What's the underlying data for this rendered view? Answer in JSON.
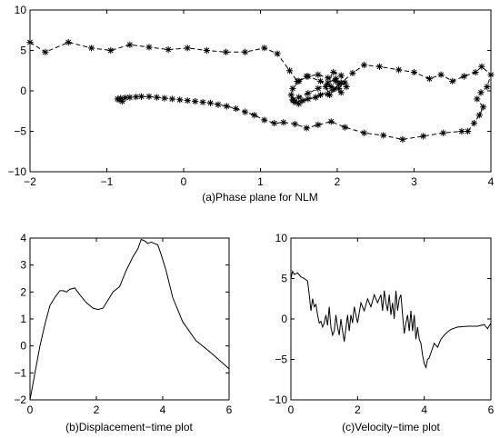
{
  "chart_data": [
    {
      "type": "line",
      "caption": "(a)Phase plane for NLM",
      "marker": "asterisk",
      "line_style": "dashed",
      "xlim": [
        -2,
        4
      ],
      "ylim": [
        -10,
        10
      ],
      "xticks": [
        -2,
        -1,
        0,
        1,
        2,
        3,
        4
      ],
      "yticks": [
        -10,
        -5,
        0,
        5,
        10
      ],
      "grid": false,
      "series": [
        {
          "x": [
            -2.0,
            -1.8,
            -1.5,
            -1.2,
            -0.95,
            -0.7,
            -0.45,
            -0.2,
            0.05,
            0.3,
            0.55,
            0.8,
            1.05,
            1.22,
            1.38,
            1.48,
            1.6,
            1.75,
            1.88,
            1.98,
            2.05,
            2.12,
            2.05,
            1.92,
            1.78,
            1.62,
            1.5,
            1.42,
            1.4,
            1.43,
            1.5,
            1.62,
            1.78,
            1.95,
            2.02,
            1.98,
            1.88,
            1.75,
            1.62,
            1.5,
            1.42,
            1.45,
            1.55,
            1.72,
            1.88,
            2.02,
            2.1,
            2.05,
            1.95,
            1.85,
            1.9,
            2.05,
            2.2,
            2.35,
            2.55,
            2.8,
            3.0,
            3.2,
            3.35,
            3.5,
            3.65,
            3.8,
            3.88,
            4.0,
            3.95,
            3.87,
            3.82,
            3.9,
            3.85,
            3.78,
            3.7,
            3.62,
            3.38,
            3.12,
            2.85,
            2.6,
            2.35,
            2.1,
            1.92,
            1.75,
            1.6,
            1.45,
            1.3,
            1.18,
            1.05,
            0.92,
            0.8,
            0.68,
            0.56,
            0.45,
            0.35,
            0.25,
            0.15,
            0.05,
            -0.05,
            -0.15,
            -0.25,
            -0.35,
            -0.45,
            -0.55,
            -0.62,
            -0.7,
            -0.76,
            -0.82,
            -0.86,
            -0.84,
            -0.8
          ],
          "y": [
            6.0,
            4.8,
            6.0,
            5.3,
            5.0,
            5.7,
            5.4,
            5.1,
            5.3,
            5.0,
            4.8,
            4.8,
            5.3,
            4.6,
            2.5,
            1.2,
            1.8,
            2.0,
            1.6,
            1.2,
            1.0,
            0.5,
            -0.2,
            0.5,
            1.2,
            1.8,
            1.2,
            0.3,
            -0.5,
            -1.2,
            -1.6,
            -1.0,
            -0.5,
            0.2,
            0.8,
            1.5,
            1.0,
            0.3,
            -0.3,
            -0.8,
            -1.1,
            -1.4,
            -1.2,
            -0.8,
            -0.4,
            0.3,
            1.0,
            1.9,
            2.3,
            0.5,
            -0.5,
            1.0,
            2.2,
            3.2,
            3.0,
            2.6,
            2.3,
            1.5,
            2.0,
            1.2,
            1.8,
            2.3,
            3.0,
            2.0,
            0.5,
            -0.2,
            -1.0,
            -2.0,
            -3.0,
            -4.0,
            -5.0,
            -5.0,
            -5.2,
            -5.6,
            -6.0,
            -5.5,
            -5.2,
            -4.5,
            -3.8,
            -4.2,
            -4.6,
            -4.1,
            -3.9,
            -4.0,
            -3.6,
            -3.0,
            -2.6,
            -2.2,
            -1.9,
            -1.7,
            -1.5,
            -1.4,
            -1.3,
            -1.2,
            -1.1,
            -1.0,
            -0.9,
            -0.8,
            -0.7,
            -0.7,
            -0.75,
            -0.8,
            -0.85,
            -0.9,
            -1.0,
            -1.1,
            -1.3
          ]
        }
      ]
    },
    {
      "type": "line",
      "caption": "(b)Displacement−time plot",
      "xlim": [
        0,
        6
      ],
      "ylim": [
        -2,
        4
      ],
      "xticks": [
        0,
        2,
        4,
        6
      ],
      "yticks": [
        -2,
        -1,
        0,
        1,
        2,
        3,
        4
      ],
      "grid": false,
      "series": [
        {
          "x": [
            0,
            0.15,
            0.3,
            0.45,
            0.6,
            0.75,
            0.9,
            1.0,
            1.1,
            1.2,
            1.35,
            1.5,
            1.7,
            1.9,
            2.05,
            2.2,
            2.35,
            2.5,
            2.7,
            2.9,
            3.1,
            3.25,
            3.35,
            3.45,
            3.55,
            3.65,
            3.75,
            3.85,
            3.95,
            4.1,
            4.3,
            4.6,
            5.0,
            5.5,
            6.0
          ],
          "y": [
            -2.0,
            -1.0,
            0.0,
            0.8,
            1.5,
            1.8,
            2.05,
            2.05,
            2.0,
            2.1,
            2.15,
            1.9,
            1.6,
            1.4,
            1.35,
            1.4,
            1.7,
            2.0,
            2.2,
            2.8,
            3.3,
            3.6,
            3.95,
            3.9,
            3.8,
            3.85,
            3.8,
            3.75,
            3.4,
            2.8,
            1.8,
            0.9,
            0.2,
            -0.3,
            -0.85
          ]
        }
      ]
    },
    {
      "type": "line",
      "caption": "(c)Velocity−time plot",
      "xlim": [
        0,
        6
      ],
      "ylim": [
        -10,
        10
      ],
      "xticks": [
        0,
        2,
        4,
        6
      ],
      "yticks": [
        -10,
        -5,
        0,
        5,
        10
      ],
      "grid": false,
      "series": [
        {
          "x": [
            0,
            0.05,
            0.1,
            0.2,
            0.3,
            0.4,
            0.5,
            0.55,
            0.6,
            0.65,
            0.7,
            0.75,
            0.8,
            0.85,
            0.9,
            0.95,
            1.0,
            1.05,
            1.1,
            1.15,
            1.2,
            1.25,
            1.3,
            1.35,
            1.4,
            1.45,
            1.5,
            1.55,
            1.6,
            1.7,
            1.75,
            1.8,
            1.85,
            1.9,
            2.0,
            2.1,
            2.2,
            2.3,
            2.4,
            2.5,
            2.6,
            2.7,
            2.75,
            2.8,
            2.85,
            2.9,
            2.95,
            3.0,
            3.05,
            3.1,
            3.15,
            3.2,
            3.25,
            3.3,
            3.35,
            3.4,
            3.45,
            3.5,
            3.55,
            3.6,
            3.65,
            3.7,
            3.75,
            3.8,
            3.85,
            3.9,
            3.95,
            4.0,
            4.05,
            4.1,
            4.15,
            4.2,
            4.3,
            4.4,
            4.5,
            4.6,
            4.7,
            4.8,
            5.0,
            5.3,
            5.6,
            5.8,
            5.9,
            6.0
          ],
          "y": [
            5.0,
            5.9,
            5.5,
            5.7,
            5.2,
            5.0,
            4.7,
            3.0,
            1.0,
            2.5,
            1.5,
            1.8,
            0.5,
            -0.5,
            -0.3,
            -1.0,
            -0.5,
            0.5,
            -0.8,
            1.5,
            -1.0,
            -2.0,
            -1.5,
            0.5,
            -1.0,
            -2.0,
            0.0,
            -1.5,
            -2.8,
            0.5,
            -1.5,
            0.5,
            -0.5,
            1.5,
            -0.5,
            2.0,
            1.0,
            2.5,
            1.5,
            3.0,
            2.0,
            3.0,
            1.0,
            3.5,
            2.0,
            1.0,
            3.0,
            0.5,
            2.0,
            0.0,
            3.5,
            1.0,
            2.5,
            3.0,
            0.5,
            -1.8,
            -0.5,
            0.5,
            -1.5,
            1.0,
            -1.5,
            0.5,
            -2.5,
            -1.0,
            -2.5,
            -3.0,
            -4.5,
            -5.5,
            -6.0,
            -5.0,
            -4.8,
            -4.2,
            -3.0,
            -3.5,
            -2.5,
            -2.0,
            -1.6,
            -1.3,
            -1.0,
            -0.9,
            -0.9,
            -0.7,
            -1.2,
            -0.5
          ]
        }
      ]
    }
  ]
}
